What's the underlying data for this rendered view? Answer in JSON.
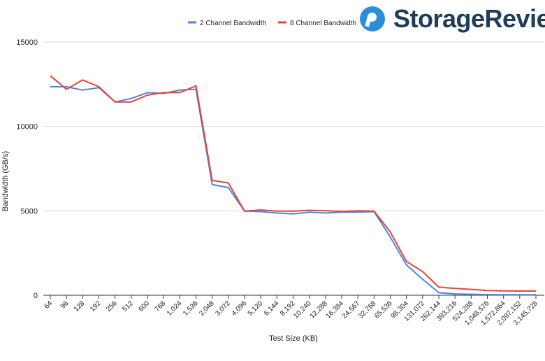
{
  "brand": {
    "name": "StorageReview",
    "accent": "#2a8fd8",
    "text_color": "#1f3d5a"
  },
  "chart_data": {
    "type": "line",
    "title": "",
    "xlabel": "Test Size (KB)",
    "ylabel": "Bandwidth (GB/s)",
    "ylim": [
      0,
      15000
    ],
    "yticks": [
      0,
      5000,
      10000,
      15000
    ],
    "ytick_labels": [
      "0",
      "5000",
      "10000",
      "15000"
    ],
    "grid": "horizontal",
    "legend_position": "top",
    "categories": [
      "64",
      "96",
      "128",
      "192",
      "256",
      "512",
      "600",
      "768",
      "1,024",
      "1,536",
      "2,048",
      "3,072",
      "4,096",
      "5,120",
      "6,144",
      "8,192",
      "10,240",
      "12,288",
      "16,384",
      "24,567",
      "32,768",
      "65,536",
      "98,304",
      "131,072",
      "262,144",
      "393,216",
      "524,288",
      "1,048,576",
      "1,572,864",
      "2,097,152",
      "3,145,728"
    ],
    "series": [
      {
        "name": "2 Channel Bandwidth",
        "color": "#4a86e8",
        "values": [
          12350,
          12350,
          12150,
          12300,
          11450,
          11650,
          12000,
          11950,
          12150,
          12200,
          6550,
          6380,
          4980,
          4950,
          4870,
          4820,
          4920,
          4870,
          4920,
          4920,
          4950,
          3450,
          1800,
          950,
          150,
          80,
          60,
          40,
          30,
          30,
          30
        ]
      },
      {
        "name": "8 Channel Bandwidth",
        "color": "#ea4335",
        "values": [
          13000,
          12200,
          12750,
          12350,
          11450,
          11450,
          11850,
          12000,
          12000,
          12400,
          6800,
          6650,
          4980,
          5050,
          4980,
          4980,
          5030,
          5000,
          4970,
          5000,
          4980,
          3750,
          2000,
          1400,
          480,
          400,
          350,
          280,
          260,
          250,
          250
        ]
      }
    ]
  }
}
